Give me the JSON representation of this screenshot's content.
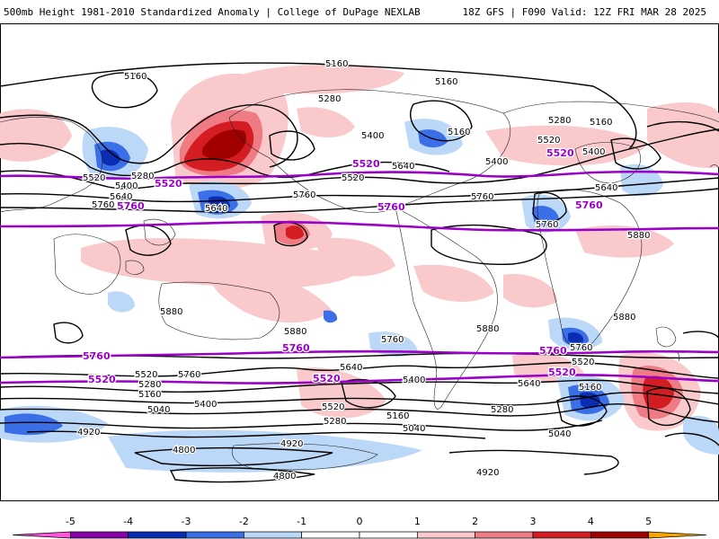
{
  "header": {
    "title": "500mb Height 1981-2010 Standardized Anomaly | College of DuPage NEXLAB",
    "run_info": "18Z GFS | F090 Valid: 12Z FRI MAR 28 2025"
  },
  "colors": {
    "anom_neg_5": "#ff55dd",
    "anom_neg_4": "#8800aa",
    "anom_neg_3": "#0b2db3",
    "anom_neg_2": "#3a6fe8",
    "anom_neg_1": "#bcd8f8",
    "anom_pos_1": "#f9c9cc",
    "anom_pos_2": "#ef7c84",
    "anom_pos_3": "#d41d22",
    "anom_pos_4": "#a00000",
    "anom_pos_5": "#f7a400",
    "contour_line": "#000000",
    "highlight_line": "#9b00c8"
  },
  "map": {
    "contour_labels": [
      {
        "id": "c01",
        "text": "5160"
      },
      {
        "id": "c02",
        "text": "5160"
      },
      {
        "id": "c03",
        "text": "5160"
      },
      {
        "id": "c04",
        "text": "5280"
      },
      {
        "id": "c05",
        "text": "5400"
      },
      {
        "id": "c06",
        "text": "5160"
      },
      {
        "id": "c07",
        "text": "5280"
      },
      {
        "id": "c08",
        "text": "5160"
      },
      {
        "id": "c09",
        "text": "5520"
      },
      {
        "id": "c10",
        "text": "5400"
      },
      {
        "id": "c11",
        "text": "5520"
      },
      {
        "id": "c12",
        "text": "5280"
      },
      {
        "id": "c13",
        "text": "5400"
      },
      {
        "id": "c14",
        "text": "5640"
      },
      {
        "id": "c15",
        "text": "5520"
      },
      {
        "id": "c16",
        "text": "5640"
      },
      {
        "id": "c17",
        "text": "5760"
      },
      {
        "id": "c18",
        "text": "5760"
      },
      {
        "id": "c19",
        "text": "5640"
      },
      {
        "id": "c20",
        "text": "5760"
      },
      {
        "id": "c21",
        "text": "5640"
      },
      {
        "id": "c22",
        "text": "5760"
      },
      {
        "id": "c23",
        "text": "5880"
      },
      {
        "id": "c24",
        "text": "5880"
      },
      {
        "id": "c25",
        "text": "5880"
      },
      {
        "id": "c26",
        "text": "5880"
      },
      {
        "id": "c27",
        "text": "5880"
      },
      {
        "id": "c28",
        "text": "5760"
      },
      {
        "id": "c29",
        "text": "5760"
      },
      {
        "id": "c30",
        "text": "5760"
      },
      {
        "id": "c31",
        "text": "5640"
      },
      {
        "id": "c32",
        "text": "5520"
      },
      {
        "id": "c33",
        "text": "5520"
      },
      {
        "id": "c34",
        "text": "5280"
      },
      {
        "id": "c35",
        "text": "5160"
      },
      {
        "id": "c36",
        "text": "5400"
      },
      {
        "id": "c37",
        "text": "5400"
      },
      {
        "id": "c38",
        "text": "5640"
      },
      {
        "id": "c39",
        "text": "5520"
      },
      {
        "id": "c40",
        "text": "5280"
      },
      {
        "id": "c41",
        "text": "5160"
      },
      {
        "id": "c42",
        "text": "5280"
      },
      {
        "id": "c43",
        "text": "5040"
      },
      {
        "id": "c44",
        "text": "5040"
      },
      {
        "id": "c45",
        "text": "5160"
      },
      {
        "id": "c46",
        "text": "5040"
      },
      {
        "id": "c47",
        "text": "4920"
      },
      {
        "id": "c48",
        "text": "4920"
      },
      {
        "id": "c49",
        "text": "4800"
      },
      {
        "id": "c50",
        "text": "4800"
      },
      {
        "id": "c51",
        "text": "4920"
      },
      {
        "id": "c52",
        "text": "5400"
      }
    ],
    "highlight_labels": [
      {
        "id": "h01",
        "text": "5520"
      },
      {
        "id": "h02",
        "text": "5520"
      },
      {
        "id": "h03",
        "text": "5520"
      },
      {
        "id": "h04",
        "text": "5760"
      },
      {
        "id": "h05",
        "text": "5760"
      },
      {
        "id": "h06",
        "text": "5760"
      },
      {
        "id": "h07",
        "text": "5760"
      },
      {
        "id": "h08",
        "text": "5760"
      },
      {
        "id": "h09",
        "text": "5760"
      },
      {
        "id": "h10",
        "text": "5520"
      },
      {
        "id": "h11",
        "text": "5520"
      },
      {
        "id": "h12",
        "text": "5520"
      }
    ]
  },
  "colorbar": {
    "ticks": [
      "-5",
      "-4",
      "-3",
      "-2",
      "-1",
      "0",
      "1",
      "2",
      "3",
      "4",
      "5"
    ]
  }
}
